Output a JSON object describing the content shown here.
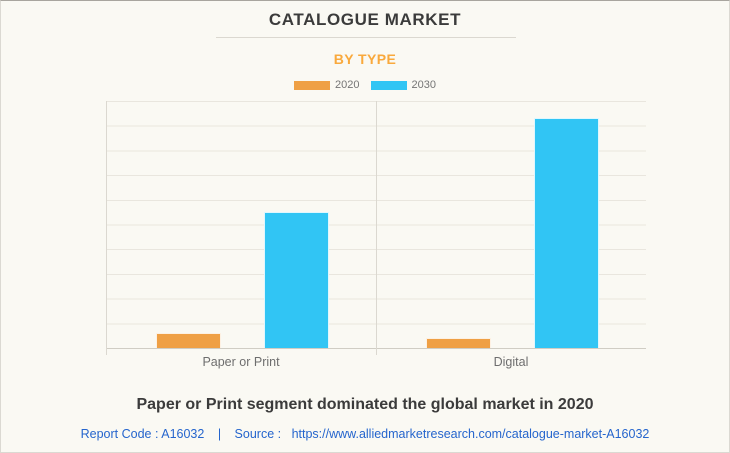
{
  "page": {
    "caption": "Paper or Print segment dominated the global market in 2020",
    "footer": {
      "report_code": "Report Code : A16032",
      "separator": "|",
      "source_prefix": "Source :",
      "source_url": "https://www.alliedmarketresearch.com/catalogue-market-A16032"
    }
  },
  "chart_data": {
    "type": "bar",
    "title": "CATALOGUE MARKET",
    "subtitle": "BY TYPE",
    "categories": [
      "Paper or Print",
      "Digital"
    ],
    "series": [
      {
        "name": "2020",
        "color": "#EFA045",
        "values": [
          0.6,
          0.4
        ]
      },
      {
        "name": "2030",
        "color": "#31C5F4",
        "values": [
          5.5,
          9.3
        ]
      }
    ],
    "xlabel": "",
    "ylabel": "",
    "ylim": [
      0,
      10
    ],
    "gridline_count": 10,
    "grid": true,
    "y_tick_labels_visible": false,
    "legend_position": "top"
  },
  "colors": {
    "background": "#FAF9F3",
    "subtitle_orange": "#F9A93C",
    "series_2020_orange": "#EFA045",
    "series_2030_blue": "#31C5F4",
    "title_text": "#3B3B3B",
    "legend_label_gray": "#757575",
    "category_label_gray": "#6E6E6E",
    "footer_link_blue": "#2565CD",
    "gridline": "#E9E6DE",
    "axis_line": "#D0CDC4"
  }
}
